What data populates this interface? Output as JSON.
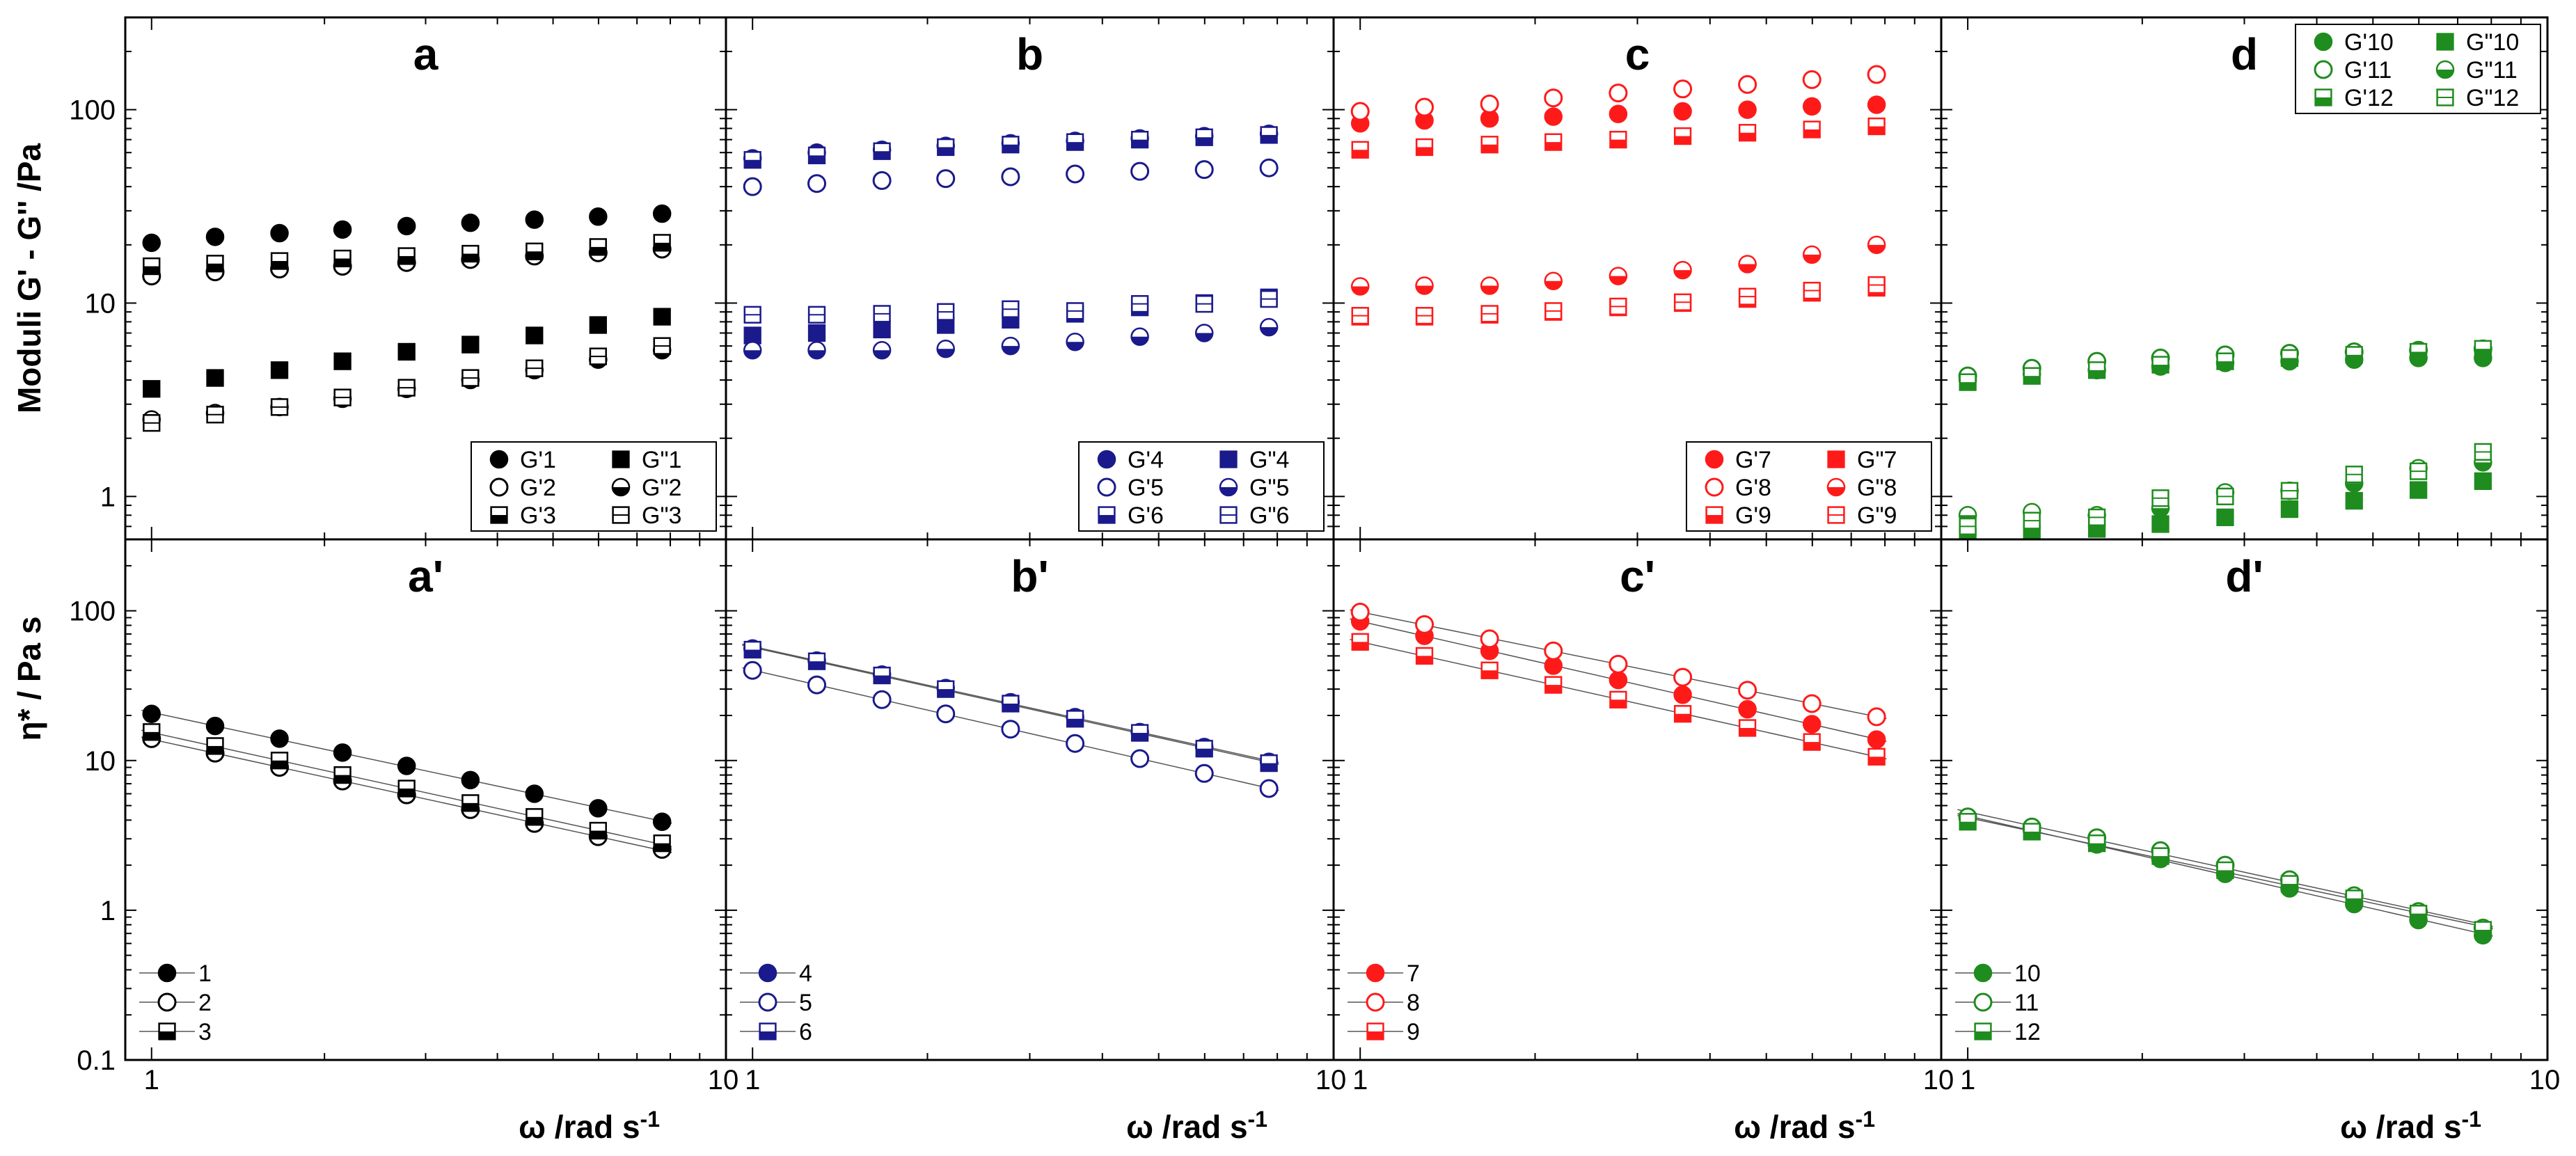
{
  "figure": {
    "ylabel_top": "Moduli G' - G'' /Pa",
    "ylabel_bottom": "η* / Pa s",
    "xlabel": "ω /rad s-1",
    "xlabel_base": "ω /rad s",
    "xlabel_exp": "-1"
  },
  "colors": {
    "black": "#000000",
    "blue": "#1a1a8c",
    "red": "#ff1a1a",
    "green": "#1e8c1e",
    "fitline": "#555555"
  },
  "chart_data": [
    {
      "type": "scatter",
      "panel": "a",
      "label": "a",
      "color": "black",
      "xscale": "log",
      "yscale": "log",
      "xlim": [
        0.9,
        10
      ],
      "ylim": [
        0.6,
        300
      ],
      "x": [
        1.0,
        1.29,
        1.67,
        2.15,
        2.78,
        3.59,
        4.64,
        5.99,
        7.74
      ],
      "legend_position": "bottom-right",
      "series": [
        {
          "name": "G'1",
          "marker": "circle",
          "fill": "full",
          "values": [
            20.5,
            22,
            23,
            24,
            25,
            26,
            27,
            28,
            29
          ]
        },
        {
          "name": "G\"1",
          "marker": "square",
          "fill": "full",
          "values": [
            3.6,
            4.1,
            4.5,
            5,
            5.6,
            6.1,
            6.8,
            7.7,
            8.5
          ]
        },
        {
          "name": "G'2",
          "marker": "circle",
          "fill": "none",
          "values": [
            13.8,
            14.5,
            15,
            15.5,
            16.2,
            16.8,
            17.5,
            18.2,
            19
          ]
        },
        {
          "name": "G\"2",
          "marker": "circle",
          "fill": "bottom",
          "values": [
            2.5,
            2.7,
            2.9,
            3.2,
            3.6,
            4,
            4.5,
            5.1,
            5.7
          ]
        },
        {
          "name": "G'3",
          "marker": "square",
          "fill": "bottom",
          "values": [
            15.5,
            16,
            16.5,
            17,
            17.5,
            18,
            18.5,
            19.5,
            20.5
          ]
        },
        {
          "name": "G\"3",
          "marker": "square",
          "fill": "none",
          "values": [
            2.4,
            2.65,
            2.9,
            3.25,
            3.65,
            4.1,
            4.6,
            5.3,
            6.0
          ]
        }
      ]
    },
    {
      "type": "scatter",
      "panel": "b",
      "label": "b",
      "color": "blue",
      "xscale": "log",
      "yscale": "log",
      "xlim": [
        0.9,
        10
      ],
      "ylim": [
        0.6,
        300
      ],
      "x": [
        1.0,
        1.29,
        1.67,
        2.15,
        2.78,
        3.59,
        4.64,
        5.99,
        7.74
      ],
      "legend_position": "bottom-right",
      "series": [
        {
          "name": "G'4",
          "marker": "circle",
          "fill": "full",
          "values": [
            56,
            60,
            62,
            65,
            67,
            69,
            71,
            73,
            75
          ]
        },
        {
          "name": "G\"4",
          "marker": "square",
          "fill": "full",
          "values": [
            6.8,
            7.0,
            7.3,
            7.7,
            8.2,
            8.8,
            9.5,
            10.0,
            10.7
          ]
        },
        {
          "name": "G'5",
          "marker": "circle",
          "fill": "none",
          "values": [
            40,
            41.5,
            43,
            44,
            45,
            46.5,
            48,
            49,
            50
          ]
        },
        {
          "name": "G\"5",
          "marker": "circle",
          "fill": "bottom",
          "values": [
            5.7,
            5.7,
            5.7,
            5.8,
            6.0,
            6.3,
            6.7,
            7.0,
            7.5
          ]
        },
        {
          "name": "G'6",
          "marker": "square",
          "fill": "bottom",
          "values": [
            55,
            58,
            61,
            64,
            66,
            68,
            70,
            72,
            74
          ]
        },
        {
          "name": "G\"6",
          "marker": "square",
          "fill": "none",
          "values": [
            8.7,
            8.7,
            8.8,
            9.0,
            9.3,
            9.1,
            9.9,
            9.9,
            10.5
          ]
        }
      ]
    },
    {
      "type": "scatter",
      "panel": "c",
      "label": "c",
      "color": "red",
      "xscale": "log",
      "yscale": "log",
      "xlim": [
        0.9,
        10
      ],
      "ylim": [
        0.6,
        300
      ],
      "x": [
        1.0,
        1.29,
        1.67,
        2.15,
        2.78,
        3.59,
        4.64,
        5.99,
        7.74
      ],
      "legend_position": "bottom-right",
      "series": [
        {
          "name": "G'7",
          "marker": "circle",
          "fill": "full",
          "values": [
            85,
            88,
            90,
            92,
            95,
            98,
            100,
            104,
            106
          ]
        },
        {
          "name": "G\"7",
          "marker": "square",
          "fill": "full",
          "values": [
            8.5,
            8.5,
            8.7,
            9.0,
            9.5,
            10.0,
            10.5,
            11.3,
            12.0
          ]
        },
        {
          "name": "G'8",
          "marker": "circle",
          "fill": "none",
          "values": [
            98,
            103,
            107,
            115,
            122,
            128,
            135,
            143,
            152
          ]
        },
        {
          "name": "G\"8",
          "marker": "circle",
          "fill": "bottom",
          "values": [
            12.2,
            12.3,
            12.3,
            13,
            13.8,
            14.8,
            15.9,
            17.8,
            20
          ]
        },
        {
          "name": "G'9",
          "marker": "square",
          "fill": "bottom",
          "values": [
            62,
            64,
            66,
            68,
            70,
            73,
            76,
            79,
            82
          ]
        },
        {
          "name": "G\"9",
          "marker": "square",
          "fill": "none",
          "values": [
            8.6,
            8.6,
            8.8,
            9.1,
            9.6,
            10.1,
            10.8,
            11.6,
            12.4
          ]
        }
      ]
    },
    {
      "type": "scatter",
      "panel": "d",
      "label": "d",
      "color": "green",
      "xscale": "log",
      "yscale": "log",
      "xlim": [
        0.9,
        10
      ],
      "ylim": [
        0.6,
        300
      ],
      "x": [
        1.0,
        1.29,
        1.67,
        2.15,
        2.78,
        3.59,
        4.64,
        5.99,
        7.74
      ],
      "legend_position": "top-right",
      "series": [
        {
          "name": "G'10",
          "marker": "circle",
          "fill": "full",
          "values": [
            4.0,
            4.3,
            4.5,
            4.7,
            4.9,
            5.0,
            5.1,
            5.2,
            5.2
          ]
        },
        {
          "name": "G\"10",
          "marker": "square",
          "fill": "full",
          "values": [
            0.62,
            0.65,
            0.68,
            0.72,
            0.78,
            0.86,
            0.95,
            1.08,
            1.2
          ]
        },
        {
          "name": "G'11",
          "marker": "circle",
          "fill": "none",
          "values": [
            4.2,
            4.6,
            5.0,
            5.2,
            5.4,
            5.5,
            5.6,
            5.7,
            5.8
          ]
        },
        {
          "name": "G\"11",
          "marker": "circle",
          "fill": "bottom",
          "values": [
            0.8,
            0.83,
            0.8,
            0.87,
            1.05,
            1.07,
            1.17,
            1.4,
            1.5
          ]
        },
        {
          "name": "G'12",
          "marker": "square",
          "fill": "bottom",
          "values": [
            3.9,
            4.2,
            4.5,
            4.8,
            5.0,
            5.2,
            5.4,
            5.6,
            5.8
          ]
        },
        {
          "name": "G\"12",
          "marker": "square",
          "fill": "none",
          "values": [
            0.7,
            0.75,
            0.78,
            0.98,
            1.0,
            1.07,
            1.3,
            1.35,
            1.7
          ]
        }
      ]
    },
    {
      "type": "scatter",
      "panel": "a'",
      "label": "a'",
      "color": "black",
      "xscale": "log",
      "yscale": "log",
      "xlim": [
        0.9,
        10
      ],
      "ylim": [
        0.1,
        300
      ],
      "x": [
        1.0,
        1.29,
        1.67,
        2.15,
        2.78,
        3.59,
        4.64,
        5.99,
        7.74
      ],
      "fit_lines": true,
      "legend_position": "bottom-left",
      "series": [
        {
          "name": "1",
          "marker": "circle",
          "fill": "full",
          "values": [
            20.5,
            17,
            14,
            11.3,
            9.2,
            7.4,
            6.0,
            4.8,
            3.9
          ]
        },
        {
          "name": "2",
          "marker": "circle",
          "fill": "none",
          "values": [
            14,
            11.2,
            9.0,
            7.3,
            5.9,
            4.7,
            3.8,
            3.1,
            2.55
          ]
        },
        {
          "name": "3",
          "marker": "square",
          "fill": "bottom",
          "values": [
            15.5,
            12.5,
            10,
            8,
            6.5,
            5.2,
            4.2,
            3.4,
            2.8
          ]
        }
      ]
    },
    {
      "type": "scatter",
      "panel": "b'",
      "label": "b'",
      "color": "blue",
      "xscale": "log",
      "yscale": "log",
      "xlim": [
        0.9,
        10
      ],
      "ylim": [
        0.1,
        300
      ],
      "x": [
        1.0,
        1.29,
        1.67,
        2.15,
        2.78,
        3.59,
        4.64,
        5.99,
        7.74
      ],
      "fit_lines": true,
      "legend_position": "bottom-left",
      "series": [
        {
          "name": "4",
          "marker": "circle",
          "fill": "full",
          "values": [
            56,
            46.5,
            37.5,
            30.5,
            24.5,
            19.5,
            15.5,
            12.3,
            9.8
          ]
        },
        {
          "name": "5",
          "marker": "circle",
          "fill": "none",
          "values": [
            40,
            32,
            25.5,
            20.5,
            16.2,
            13,
            10.3,
            8.2,
            6.5
          ]
        },
        {
          "name": "6",
          "marker": "square",
          "fill": "bottom",
          "values": [
            55,
            46,
            37,
            30,
            24,
            19,
            15.3,
            12,
            9.6
          ]
        }
      ]
    },
    {
      "type": "scatter",
      "panel": "c'",
      "label": "c'",
      "color": "red",
      "xscale": "log",
      "yscale": "log",
      "xlim": [
        0.9,
        10
      ],
      "ylim": [
        0.1,
        300
      ],
      "x": [
        1.0,
        1.29,
        1.67,
        2.15,
        2.78,
        3.59,
        4.64,
        5.99,
        7.74
      ],
      "fit_lines": true,
      "legend_position": "bottom-left",
      "series": [
        {
          "name": "7",
          "marker": "circle",
          "fill": "full",
          "values": [
            85,
            68,
            54,
            43,
            34.5,
            27.5,
            22,
            17.5,
            13.8
          ]
        },
        {
          "name": "8",
          "marker": "circle",
          "fill": "none",
          "values": [
            98,
            81,
            65,
            54,
            44,
            36,
            29.5,
            24,
            19.6
          ]
        },
        {
          "name": "9",
          "marker": "square",
          "fill": "bottom",
          "values": [
            62,
            50,
            40,
            32,
            25.5,
            20.5,
            16.5,
            13.3,
            10.6
          ]
        }
      ]
    },
    {
      "type": "scatter",
      "panel": "d'",
      "label": "d'",
      "color": "green",
      "xscale": "log",
      "yscale": "log",
      "xlim": [
        0.9,
        10
      ],
      "ylim": [
        0.1,
        300
      ],
      "x": [
        1.0,
        1.29,
        1.67,
        2.15,
        2.78,
        3.59,
        4.64,
        5.99,
        7.74
      ],
      "fit_lines": true,
      "legend_position": "bottom-left",
      "series": [
        {
          "name": "10",
          "marker": "circle",
          "fill": "full",
          "values": [
            4.1,
            3.4,
            2.75,
            2.2,
            1.75,
            1.4,
            1.1,
            0.86,
            0.68
          ]
        },
        {
          "name": "11",
          "marker": "circle",
          "fill": "none",
          "values": [
            4.2,
            3.6,
            3.05,
            2.5,
            2.0,
            1.6,
            1.25,
            0.98,
            0.76
          ]
        },
        {
          "name": "12",
          "marker": "square",
          "fill": "bottom",
          "values": [
            3.9,
            3.35,
            2.8,
            2.3,
            1.85,
            1.5,
            1.2,
            0.95,
            0.74
          ]
        }
      ]
    }
  ],
  "axes": {
    "x_ticks": [
      1,
      10
    ],
    "top_y_ticks": [
      1,
      10,
      100
    ],
    "bottom_y_ticks": [
      0.1,
      1,
      10,
      100
    ]
  }
}
